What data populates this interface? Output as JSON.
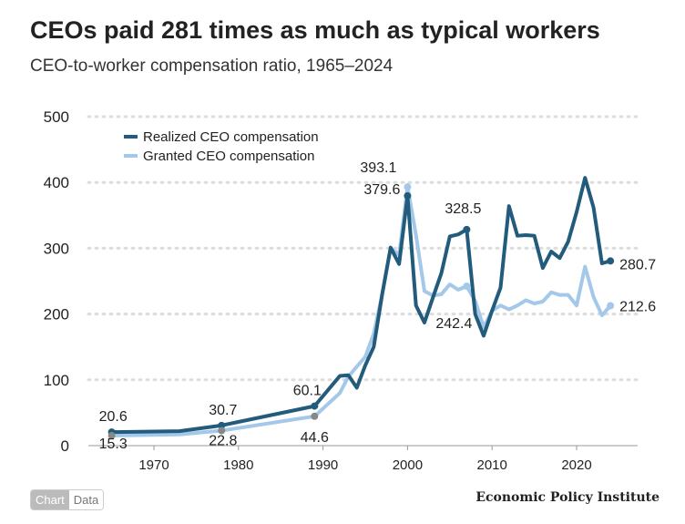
{
  "chart_data": {
    "type": "line",
    "title": "CEOs paid 281 times as much as typical workers",
    "subtitle": "CEO-to-worker compensation ratio, 1965–2024",
    "xlabel": "",
    "ylabel": "",
    "xlim": [
      1965,
      2024
    ],
    "ylim": [
      0,
      500
    ],
    "yticks": [
      0,
      100,
      200,
      300,
      400,
      500
    ],
    "xticks": [
      1970,
      1980,
      1990,
      2000,
      2010,
      2020
    ],
    "grid": true,
    "legend_placement": "top-left",
    "series": [
      {
        "name": "Realized CEO compensation",
        "color": "#225b7c",
        "x": [
          1965,
          1973,
          1978,
          1989,
          1992,
          1993,
          1994,
          1995,
          1996,
          1997,
          1998,
          1999,
          2000,
          2001,
          2002,
          2003,
          2004,
          2005,
          2006,
          2007,
          2008,
          2009,
          2010,
          2011,
          2012,
          2013,
          2014,
          2015,
          2016,
          2017,
          2018,
          2019,
          2020,
          2021,
          2022,
          2023,
          2024
        ],
        "y": [
          20.6,
          22,
          30.7,
          60.1,
          106,
          107,
          88,
          122,
          150,
          230,
          301,
          276,
          379.6,
          213,
          187,
          225,
          262,
          318,
          321,
          328.5,
          200,
          167,
          205,
          240,
          364,
          319,
          320,
          319,
          270,
          295,
          285,
          310,
          355,
          407,
          362,
          277,
          280.7
        ]
      },
      {
        "name": "Granted CEO compensation",
        "color": "#a3c8ea",
        "x": [
          1965,
          1973,
          1978,
          1989,
          1992,
          1993,
          1994,
          1995,
          1996,
          1997,
          1998,
          1999,
          2000,
          2001,
          2002,
          2003,
          2004,
          2005,
          2006,
          2007,
          2008,
          2009,
          2010,
          2011,
          2012,
          2013,
          2014,
          2015,
          2016,
          2017,
          2018,
          2019,
          2020,
          2021,
          2022,
          2023,
          2024
        ],
        "y": [
          15.3,
          17,
          22.8,
          44.6,
          80,
          105,
          120,
          135,
          170,
          230,
          300,
          290,
          393.1,
          320,
          235,
          228,
          230,
          245,
          237,
          242.4,
          220,
          180,
          205,
          213,
          207,
          213,
          221,
          216,
          219,
          233,
          229,
          229,
          213,
          272,
          226,
          198,
          212.6
        ]
      }
    ],
    "annotations": [
      {
        "series": 0,
        "x": 1965,
        "label": "20.6"
      },
      {
        "series": 0,
        "x": 1978,
        "label": "30.7"
      },
      {
        "series": 0,
        "x": 1989,
        "label": "60.1"
      },
      {
        "series": 0,
        "x": 2000,
        "label": "379.6"
      },
      {
        "series": 0,
        "x": 2007,
        "label": "328.5"
      },
      {
        "series": 0,
        "x": 2024,
        "label": "280.7"
      },
      {
        "series": 1,
        "x": 1965,
        "label": "15.3"
      },
      {
        "series": 1,
        "x": 1978,
        "label": "22.8"
      },
      {
        "series": 1,
        "x": 1989,
        "label": "44.6"
      },
      {
        "series": 1,
        "x": 2000,
        "label": "393.1"
      },
      {
        "series": 1,
        "x": 2007,
        "label": "242.4"
      },
      {
        "series": 1,
        "x": 2024,
        "label": "212.6"
      }
    ]
  },
  "toggle": {
    "chart": "Chart",
    "data": "Data"
  },
  "brand": "Economic Policy Institute"
}
